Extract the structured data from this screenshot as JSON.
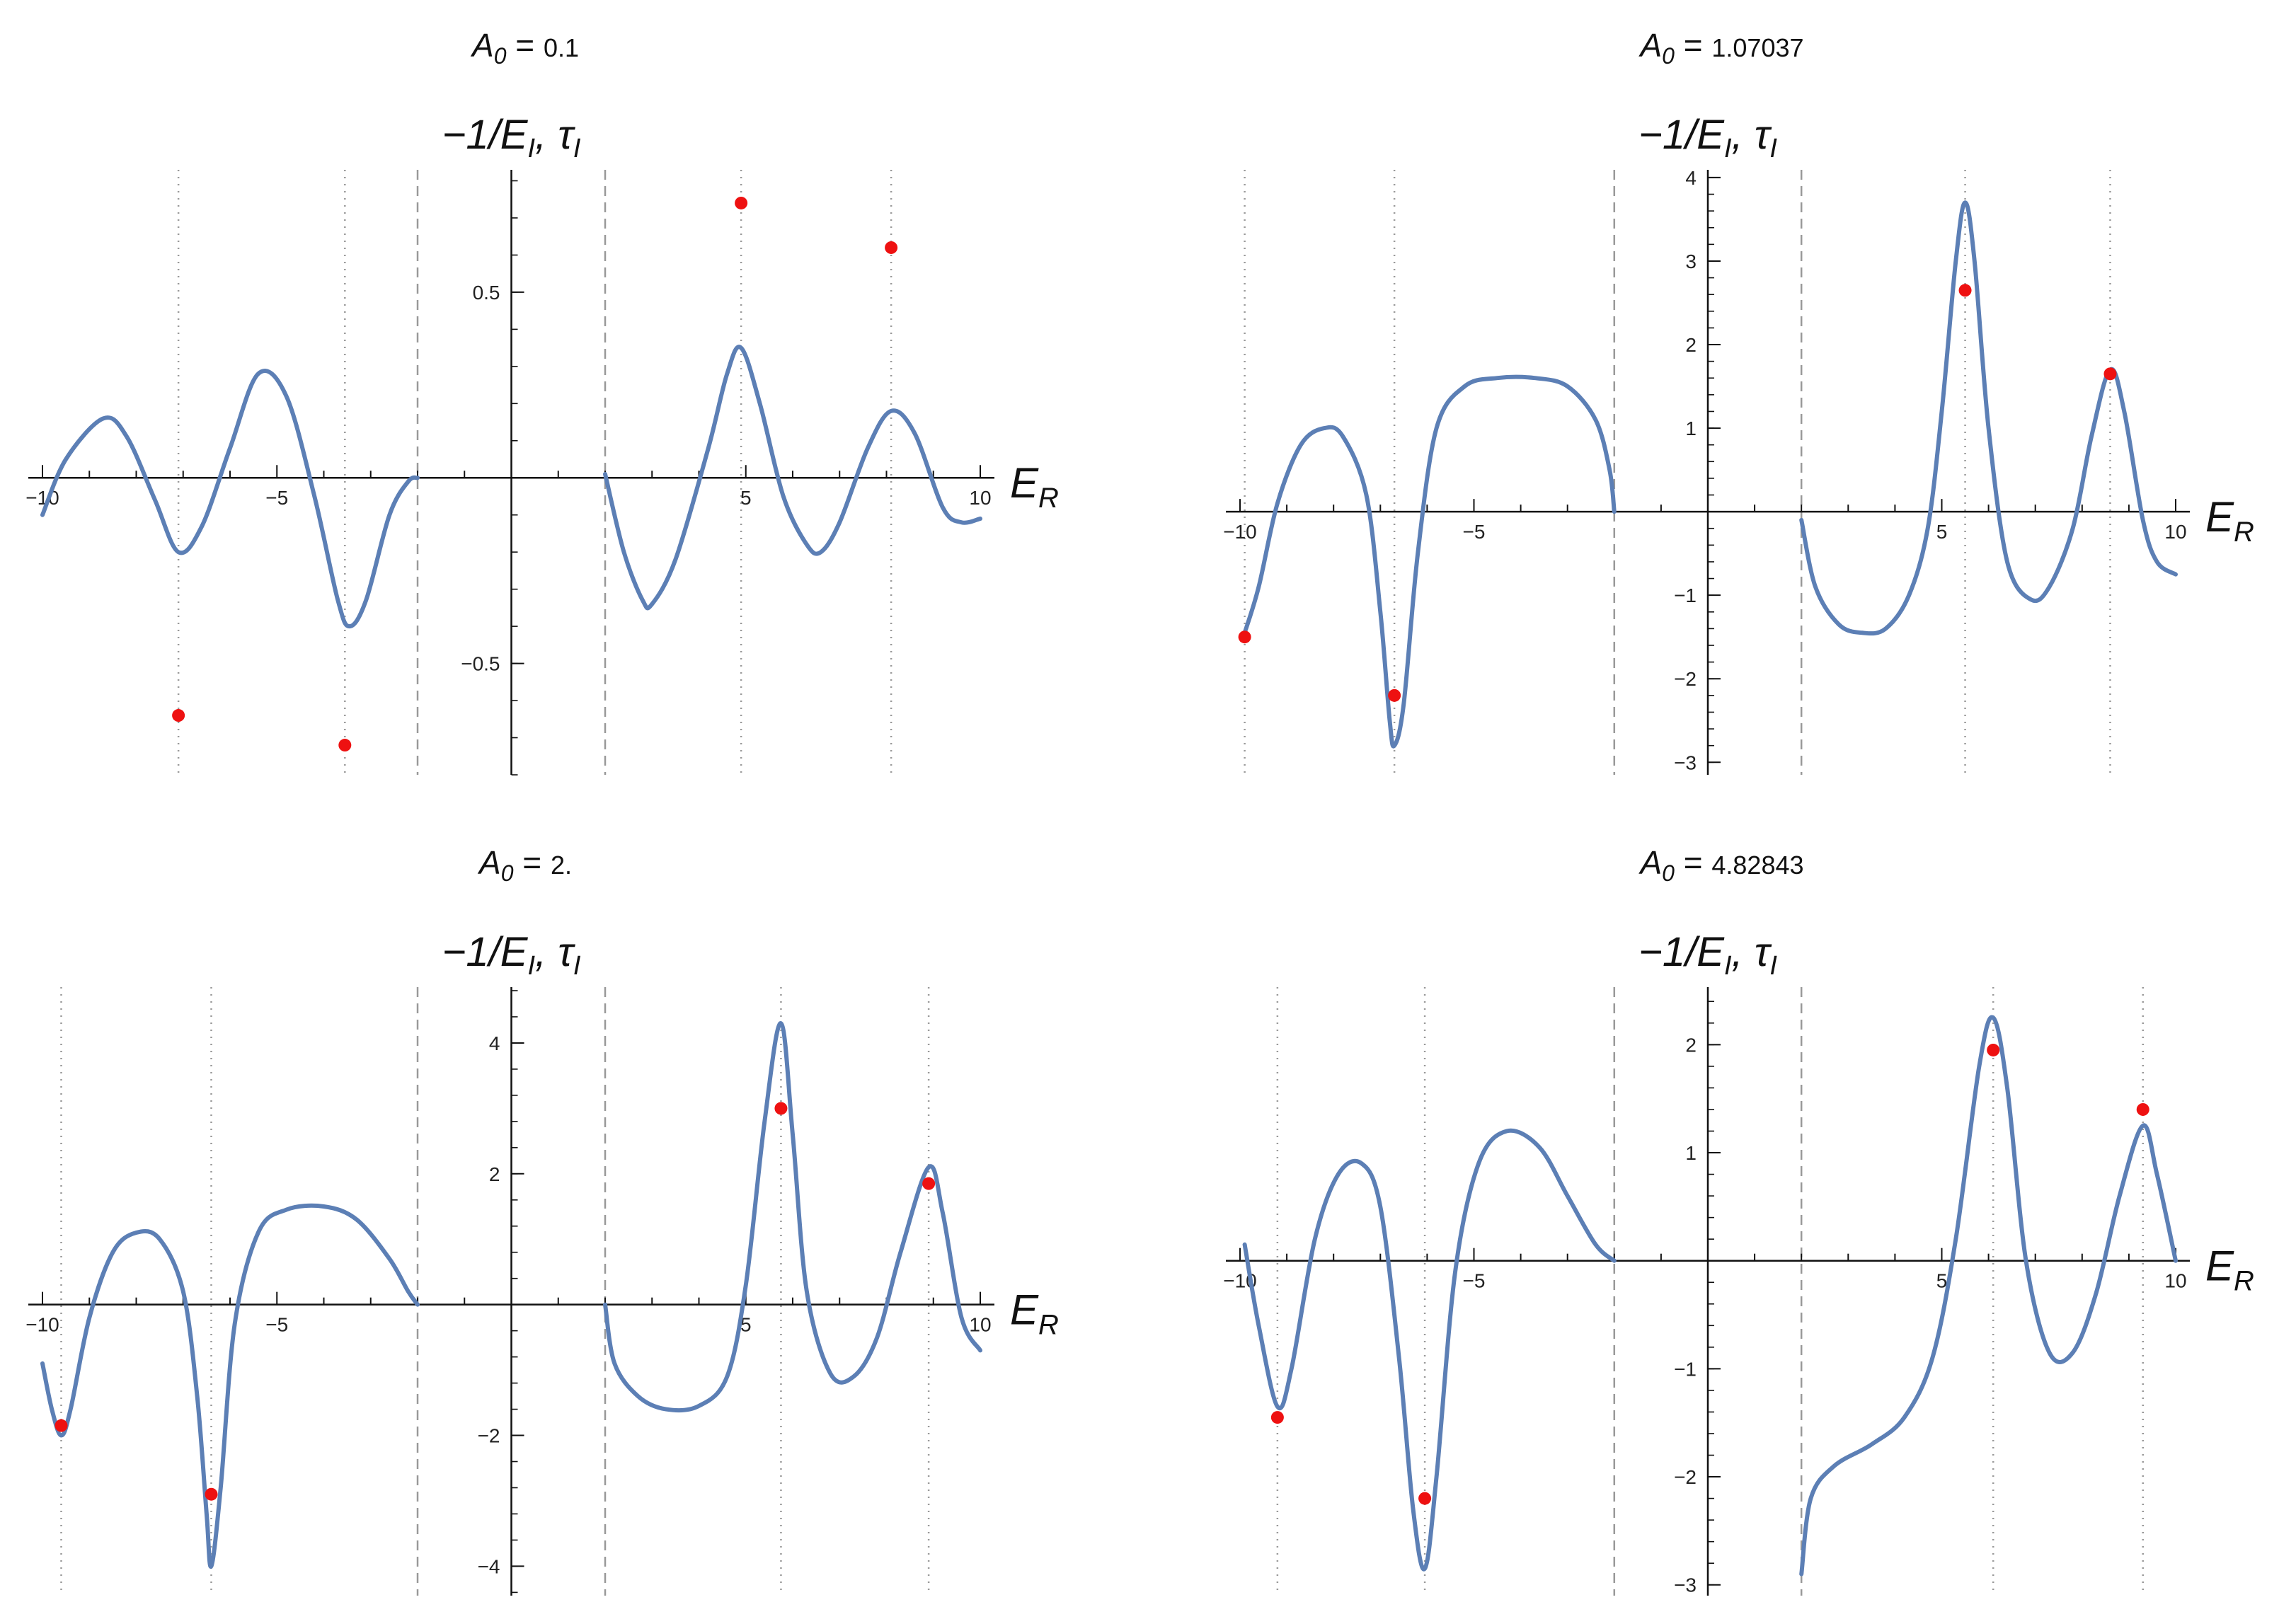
{
  "chart_data": [
    {
      "type": "line",
      "title": "A_0 = 0.1",
      "title_prefix": "A",
      "title_sub": "0",
      "title_value": "0.1",
      "ylabel": "−1/E_I, τ_I",
      "xlabel": "E_R",
      "xlim": [
        -10,
        10
      ],
      "ylim": [
        -0.8,
        0.82
      ],
      "x_ticks": [
        -10,
        -5,
        5,
        10
      ],
      "y_ticks": [
        -0.5,
        0.5
      ],
      "y_tick_labels": [
        "−0.5",
        "0.5"
      ],
      "x_tick_labels": [
        "−10",
        "−5",
        "5",
        "10"
      ],
      "dashed_x": [
        -2,
        2
      ],
      "dotted_x": [
        -7.1,
        -3.55,
        4.9,
        8.1
      ],
      "series": [
        {
          "type": "line",
          "segments": [
            [
              [
                -10,
                -0.1
              ],
              [
                -9.5,
                0.05
              ],
              [
                -8.7,
                0.16
              ],
              [
                -8.2,
                0.11
              ],
              [
                -7.6,
                -0.06
              ],
              [
                -7.1,
                -0.2
              ],
              [
                -6.6,
                -0.13
              ],
              [
                -6.0,
                0.08
              ],
              [
                -5.4,
                0.28
              ],
              [
                -4.8,
                0.22
              ],
              [
                -4.2,
                -0.05
              ],
              [
                -3.7,
                -0.33
              ],
              [
                -3.45,
                -0.4
              ],
              [
                -3.1,
                -0.33
              ],
              [
                -2.6,
                -0.1
              ],
              [
                -2.2,
                -0.01
              ],
              [
                -2.0,
                0.0
              ]
            ],
            [
              [
                2.0,
                0.01
              ],
              [
                2.4,
                -0.2
              ],
              [
                2.8,
                -0.33
              ],
              [
                3.0,
                -0.34
              ],
              [
                3.5,
                -0.22
              ],
              [
                4.2,
                0.08
              ],
              [
                4.6,
                0.28
              ],
              [
                4.9,
                0.35
              ],
              [
                5.3,
                0.2
              ],
              [
                5.8,
                -0.05
              ],
              [
                6.3,
                -0.18
              ],
              [
                6.6,
                -0.2
              ],
              [
                7.0,
                -0.12
              ],
              [
                7.6,
                0.08
              ],
              [
                8.1,
                0.18
              ],
              [
                8.6,
                0.12
              ],
              [
                9.2,
                -0.08
              ],
              [
                9.6,
                -0.12
              ],
              [
                10.0,
                -0.11
              ]
            ]
          ]
        },
        {
          "type": "scatter",
          "points": [
            [
              -7.1,
              -0.64
            ],
            [
              -3.55,
              -0.72
            ],
            [
              4.9,
              0.74
            ],
            [
              8.1,
              0.62
            ]
          ]
        }
      ]
    },
    {
      "type": "line",
      "title": "A_0 = 1.07037",
      "title_prefix": "A",
      "title_sub": "0",
      "title_value": "1.07037",
      "ylabel": "−1/E_I, τ_I",
      "xlabel": "E_R",
      "xlim": [
        -10,
        10
      ],
      "ylim": [
        -3.15,
        4.05
      ],
      "x_ticks": [
        -10,
        -5,
        5,
        10
      ],
      "y_ticks": [
        -3,
        -2,
        -1,
        1,
        2,
        3,
        4
      ],
      "y_tick_labels": [
        "−3",
        "−2",
        "−1",
        "1",
        "2",
        "3",
        "4"
      ],
      "x_tick_labels": [
        "−10",
        "−5",
        "5",
        "10"
      ],
      "dashed_x": [
        -2,
        2
      ],
      "dotted_x": [
        -9.9,
        -6.7,
        5.5,
        8.6
      ],
      "series": [
        {
          "type": "line",
          "segments": [
            [
              [
                -9.9,
                -1.45
              ],
              [
                -9.6,
                -0.9
              ],
              [
                -9.2,
                0.1
              ],
              [
                -8.7,
                0.8
              ],
              [
                -8.2,
                1.0
              ],
              [
                -7.8,
                0.9
              ],
              [
                -7.3,
                0.2
              ],
              [
                -7.0,
                -1.2
              ],
              [
                -6.8,
                -2.5
              ],
              [
                -6.7,
                -2.8
              ],
              [
                -6.5,
                -2.3
              ],
              [
                -6.2,
                -0.5
              ],
              [
                -5.8,
                1.0
              ],
              [
                -5.2,
                1.5
              ],
              [
                -4.5,
                1.6
              ],
              [
                -3.7,
                1.6
              ],
              [
                -3.0,
                1.5
              ],
              [
                -2.4,
                1.1
              ],
              [
                -2.1,
                0.5
              ],
              [
                -2.0,
                0.0
              ]
            ],
            [
              [
                2.0,
                -0.1
              ],
              [
                2.3,
                -0.9
              ],
              [
                2.8,
                -1.35
              ],
              [
                3.3,
                -1.45
              ],
              [
                3.8,
                -1.4
              ],
              [
                4.3,
                -1.0
              ],
              [
                4.7,
                -0.2
              ],
              [
                5.0,
                1.2
              ],
              [
                5.3,
                3.0
              ],
              [
                5.5,
                3.7
              ],
              [
                5.7,
                3.0
              ],
              [
                6.0,
                1.0
              ],
              [
                6.4,
                -0.6
              ],
              [
                6.9,
                -1.05
              ],
              [
                7.3,
                -0.9
              ],
              [
                7.8,
                -0.2
              ],
              [
                8.2,
                0.9
              ],
              [
                8.6,
                1.7
              ],
              [
                8.9,
                1.2
              ],
              [
                9.3,
                -0.1
              ],
              [
                9.6,
                -0.6
              ],
              [
                10.0,
                -0.75
              ]
            ]
          ]
        },
        {
          "type": "scatter",
          "points": [
            [
              -9.9,
              -1.5
            ],
            [
              -6.7,
              -2.2
            ],
            [
              5.5,
              2.65
            ],
            [
              8.6,
              1.65
            ]
          ]
        }
      ]
    },
    {
      "type": "line",
      "title": "A_0 = 2.",
      "title_prefix": "A",
      "title_sub": "0",
      "title_value": "2.",
      "ylabel": "−1/E_I, τ_I",
      "xlabel": "E_R",
      "xlim": [
        -10,
        10
      ],
      "ylim": [
        -4.45,
        4.8
      ],
      "x_ticks": [
        -10,
        -5,
        5,
        10
      ],
      "y_ticks": [
        -4,
        -2,
        2,
        4
      ],
      "y_tick_labels": [
        "−4",
        "−2",
        "2",
        "4"
      ],
      "x_tick_labels": [
        "−10",
        "−5",
        "5",
        "10"
      ],
      "dashed_x": [
        -2,
        2
      ],
      "dotted_x": [
        -9.6,
        -6.4,
        5.75,
        8.9
      ],
      "series": [
        {
          "type": "line",
          "segments": [
            [
              [
                -10.0,
                -0.9
              ],
              [
                -9.8,
                -1.6
              ],
              [
                -9.6,
                -2.0
              ],
              [
                -9.4,
                -1.6
              ],
              [
                -9.0,
                -0.2
              ],
              [
                -8.5,
                0.8
              ],
              [
                -8.0,
                1.1
              ],
              [
                -7.5,
                1.0
              ],
              [
                -7.0,
                0.2
              ],
              [
                -6.7,
                -1.4
              ],
              [
                -6.5,
                -3.2
              ],
              [
                -6.4,
                -4.0
              ],
              [
                -6.2,
                -2.8
              ],
              [
                -5.9,
                -0.3
              ],
              [
                -5.4,
                1.1
              ],
              [
                -4.8,
                1.45
              ],
              [
                -4.0,
                1.5
              ],
              [
                -3.3,
                1.3
              ],
              [
                -2.6,
                0.7
              ],
              [
                -2.2,
                0.2
              ],
              [
                -2.0,
                0.0
              ]
            ],
            [
              [
                2.0,
                0.0
              ],
              [
                2.2,
                -0.9
              ],
              [
                2.7,
                -1.4
              ],
              [
                3.3,
                -1.6
              ],
              [
                4.0,
                -1.55
              ],
              [
                4.6,
                -1.1
              ],
              [
                5.0,
                0.3
              ],
              [
                5.4,
                2.8
              ],
              [
                5.75,
                4.3
              ],
              [
                6.0,
                2.6
              ],
              [
                6.3,
                0.2
              ],
              [
                6.8,
                -1.05
              ],
              [
                7.3,
                -1.1
              ],
              [
                7.8,
                -0.5
              ],
              [
                8.3,
                0.8
              ],
              [
                8.9,
                2.1
              ],
              [
                9.2,
                1.4
              ],
              [
                9.6,
                -0.2
              ],
              [
                10.0,
                -0.7
              ]
            ]
          ]
        },
        {
          "type": "scatter",
          "points": [
            [
              -9.6,
              -1.85
            ],
            [
              -6.4,
              -2.9
            ],
            [
              5.75,
              3.0
            ],
            [
              8.9,
              1.85
            ]
          ]
        }
      ]
    },
    {
      "type": "line",
      "title": "A_0 = 4.82843",
      "title_prefix": "A",
      "title_sub": "0",
      "title_value": "4.82843",
      "ylabel": "−1/E_I, τ_I",
      "xlabel": "E_R",
      "xlim": [
        -10,
        10
      ],
      "ylim": [
        -3.1,
        2.5
      ],
      "x_ticks": [
        -10,
        -5,
        5,
        10
      ],
      "y_ticks": [
        -3,
        -2,
        -1,
        1,
        2
      ],
      "y_tick_labels": [
        "−3",
        "−2",
        "−1",
        "1",
        "2"
      ],
      "x_tick_labels": [
        "−10",
        "−5",
        "5",
        "10"
      ],
      "dashed_x": [
        -2,
        2
      ],
      "dotted_x": [
        -9.2,
        -6.05,
        6.1,
        9.3
      ],
      "series": [
        {
          "type": "line",
          "segments": [
            [
              [
                -9.9,
                0.15
              ],
              [
                -9.6,
                -0.6
              ],
              [
                -9.2,
                -1.35
              ],
              [
                -8.9,
                -1.0
              ],
              [
                -8.4,
                0.2
              ],
              [
                -7.9,
                0.8
              ],
              [
                -7.4,
                0.9
              ],
              [
                -7.0,
                0.5
              ],
              [
                -6.6,
                -0.9
              ],
              [
                -6.3,
                -2.3
              ],
              [
                -6.05,
                -2.85
              ],
              [
                -5.8,
                -2.0
              ],
              [
                -5.4,
                -0.1
              ],
              [
                -4.9,
                0.9
              ],
              [
                -4.3,
                1.2
              ],
              [
                -3.6,
                1.05
              ],
              [
                -3.0,
                0.6
              ],
              [
                -2.4,
                0.15
              ],
              [
                -2.0,
                0.0
              ]
            ],
            [
              [
                2.0,
                -2.9
              ],
              [
                2.2,
                -2.2
              ],
              [
                2.7,
                -1.9
              ],
              [
                3.5,
                -1.7
              ],
              [
                4.2,
                -1.45
              ],
              [
                4.8,
                -0.9
              ],
              [
                5.3,
                0.2
              ],
              [
                5.8,
                1.8
              ],
              [
                6.1,
                2.25
              ],
              [
                6.4,
                1.6
              ],
              [
                6.8,
                0.0
              ],
              [
                7.3,
                -0.85
              ],
              [
                7.8,
                -0.85
              ],
              [
                8.3,
                -0.3
              ],
              [
                8.8,
                0.6
              ],
              [
                9.3,
                1.25
              ],
              [
                9.6,
                0.8
              ],
              [
                10.0,
                0.0
              ]
            ]
          ]
        },
        {
          "type": "scatter",
          "points": [
            [
              -9.2,
              -1.45
            ],
            [
              -6.05,
              -2.2
            ],
            [
              6.1,
              1.95
            ],
            [
              9.3,
              1.4
            ]
          ]
        }
      ]
    }
  ]
}
